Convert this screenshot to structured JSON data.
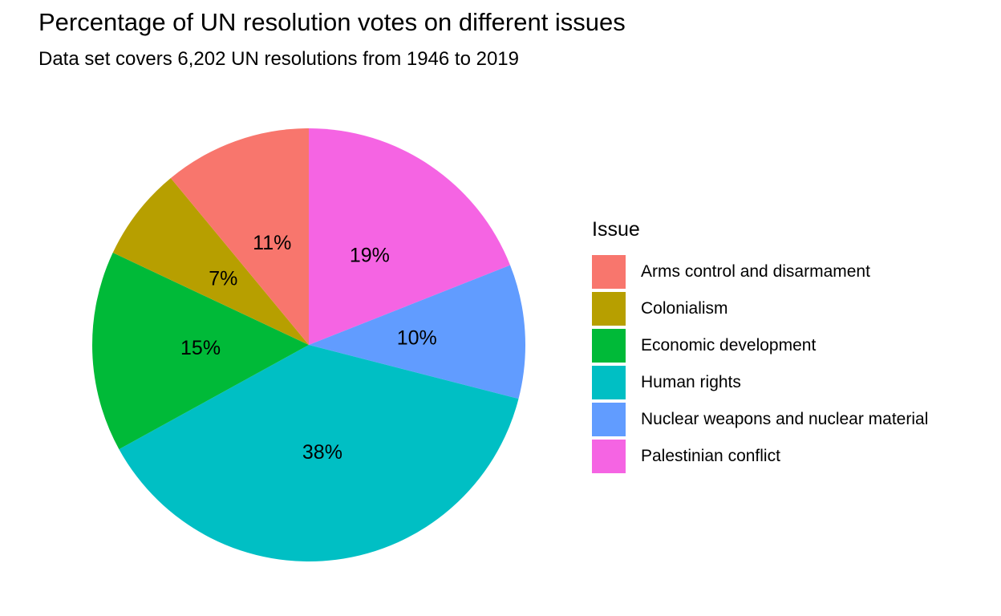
{
  "chart_data": {
    "type": "pie",
    "title": "Percentage of UN resolution votes on different issues",
    "subtitle": "Data set covers 6,202 UN resolutions from 1946 to 2019",
    "legend_title": "Issue",
    "legend_position": "right",
    "direction": "clockwise",
    "start": "top",
    "slices": [
      {
        "label": "Palestinian conflict",
        "value": 19,
        "display": "19%",
        "color": "#F564E3"
      },
      {
        "label": "Nuclear weapons and nuclear material",
        "value": 10,
        "display": "10%",
        "color": "#619CFF"
      },
      {
        "label": "Human rights",
        "value": 38,
        "display": "38%",
        "color": "#00BFC4"
      },
      {
        "label": "Economic development",
        "value": 15,
        "display": "15%",
        "color": "#00BA38"
      },
      {
        "label": "Colonialism",
        "value": 7,
        "display": "7%",
        "color": "#B79F00"
      },
      {
        "label": "Arms control and disarmament",
        "value": 11,
        "display": "11%",
        "color": "#F8766D"
      }
    ],
    "legend_order": [
      "Arms control and disarmament",
      "Colonialism",
      "Economic development",
      "Human rights",
      "Nuclear weapons and nuclear material",
      "Palestinian conflict"
    ]
  }
}
